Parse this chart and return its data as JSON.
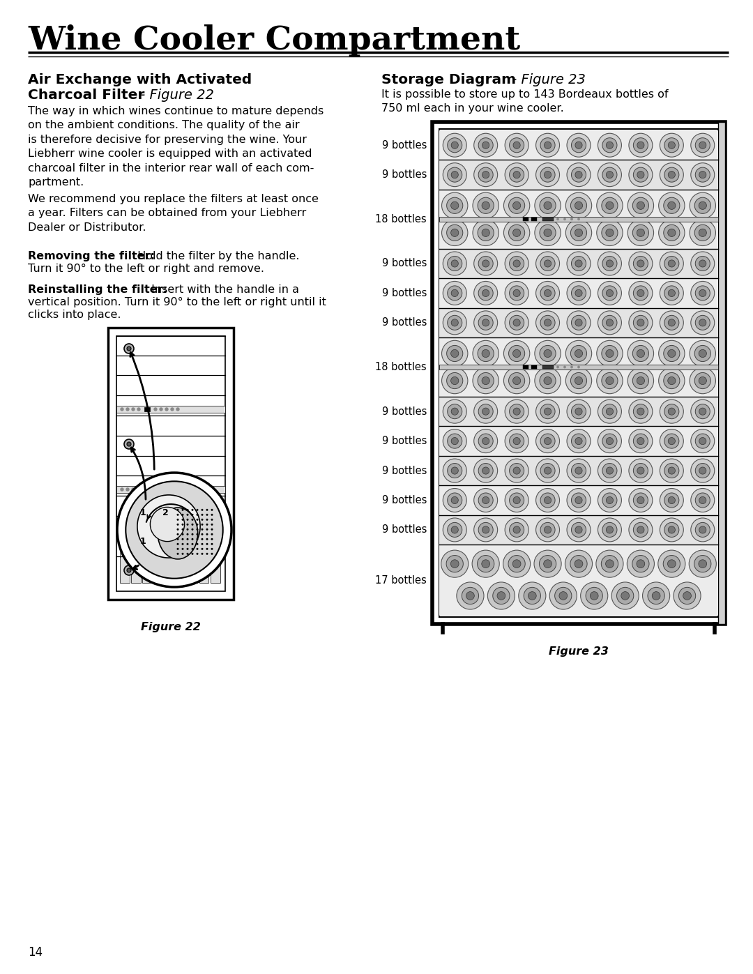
{
  "page_title": "Wine Cooler Compartment",
  "left_h1_line1": "Air Exchange with Activated",
  "left_h1_line2_bold": "Charcoal Filter",
  "left_h1_line2_italic": " - Figure 22",
  "left_para1": "The way in which wines continue to mature depends\non the ambient conditions. The quality of the air\nis therefore decisive for preserving the wine. Your\nLiebherr wine cooler is equipped with an activated\ncharcoal filter in the interior rear wall of each com-\npartment.",
  "left_para2": "We recommend you replace the filters at least once\na year. Filters can be obtained from your Liebherr\nDealer or Distributor.",
  "left_bold1": "Removing the filter:",
  "left_text1": " Hold the filter by the handle.\nTurn it 90° to the left or right and remove.",
  "left_bold2": "Reinstalling the filter:",
  "left_text2": " Insert with the handle in a\nvertical position. Turn it 90° to the left or right until it\nclicks into place.",
  "fig22_caption": "Figure 22",
  "right_h1_bold": "Storage Diagram",
  "right_h1_italic": " - Figure 23",
  "right_para": "It is possible to store up to 143 Bordeaux bottles of\n750 ml each in your wine cooler.",
  "storage_rows": [
    {
      "label": "9 bottles",
      "type": "single"
    },
    {
      "label": "9 bottles",
      "type": "single"
    },
    {
      "label": "18 bottles",
      "type": "double"
    },
    {
      "label": "9 bottles",
      "type": "single"
    },
    {
      "label": "9 bottles",
      "type": "single"
    },
    {
      "label": "9 bottles",
      "type": "single"
    },
    {
      "label": "18 bottles",
      "type": "double"
    },
    {
      "label": "9 bottles",
      "type": "single"
    },
    {
      "label": "9 bottles",
      "type": "single"
    },
    {
      "label": "9 bottles",
      "type": "single"
    },
    {
      "label": "9 bottles",
      "type": "single"
    },
    {
      "label": "9 bottles",
      "type": "single"
    },
    {
      "label": "17 bottles",
      "type": "bottom"
    }
  ],
  "fig23_caption": "Figure 23",
  "page_number": "14",
  "bg": "#ffffff"
}
